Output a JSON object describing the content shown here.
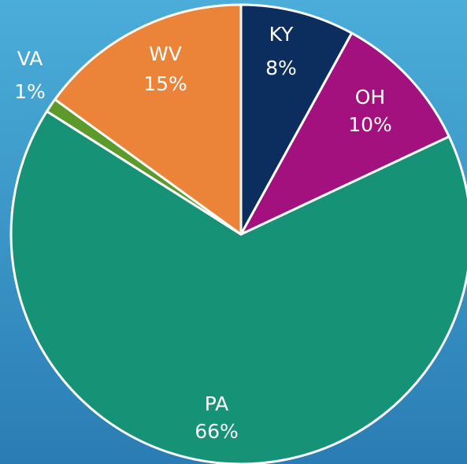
{
  "chart_data": {
    "type": "pie",
    "categories": [
      "KY",
      "OH",
      "PA",
      "VA",
      "WV"
    ],
    "values": [
      8,
      10,
      66,
      1,
      15
    ],
    "value_labels": [
      "8%",
      "10%",
      "66%",
      "1%",
      "15%"
    ],
    "colors": [
      "#0b2e5f",
      "#a3117f",
      "#169277",
      "#5c9a2c",
      "#eb8338"
    ]
  }
}
